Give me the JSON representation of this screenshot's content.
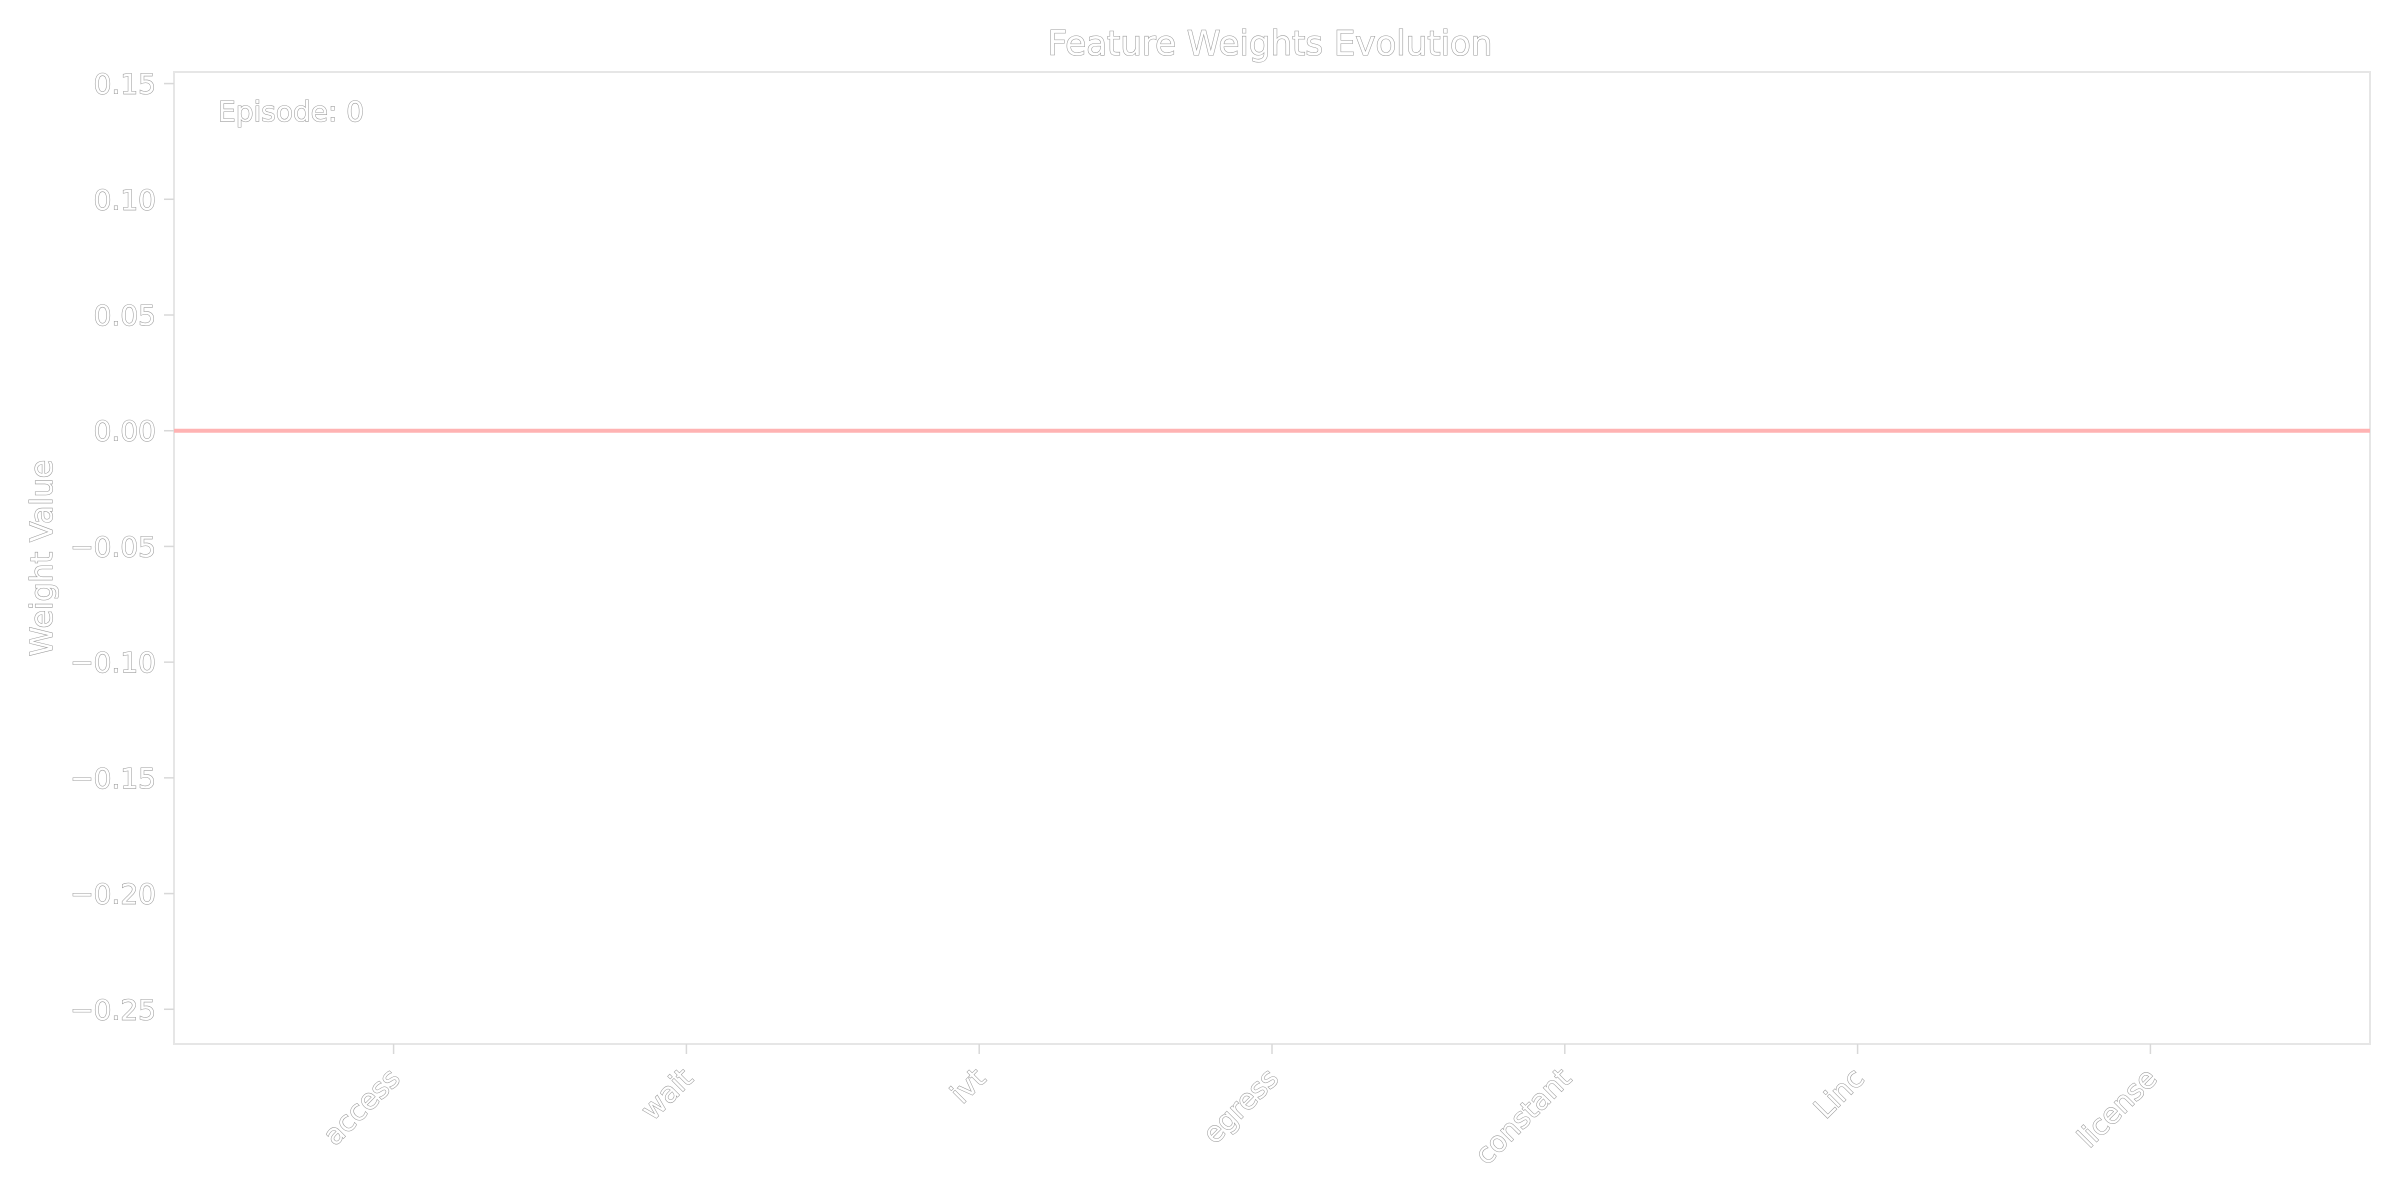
{
  "chart_data": {
    "type": "bar",
    "title": "Feature Weights Evolution",
    "xlabel": "",
    "ylabel": "Weight Value",
    "categories": [
      "access",
      "wait",
      "ivt",
      "egress",
      "constant",
      "Linc",
      "license"
    ],
    "values": [
      0,
      0,
      0,
      0,
      0,
      0,
      0
    ],
    "ylim": [
      -0.265,
      0.155
    ],
    "yticks": [
      0.15,
      0.1,
      0.05,
      0.0,
      -0.05,
      -0.1,
      -0.15,
      -0.2,
      -0.25
    ],
    "ytick_labels": [
      "0.15",
      "0.10",
      "0.05",
      "0.00",
      "−0.05",
      "−0.10",
      "−0.15",
      "−0.20",
      "−0.25"
    ],
    "annotation": "Episode: 0",
    "grid": false,
    "reference_line": {
      "y": 0,
      "color": "#ffb3b3"
    }
  }
}
